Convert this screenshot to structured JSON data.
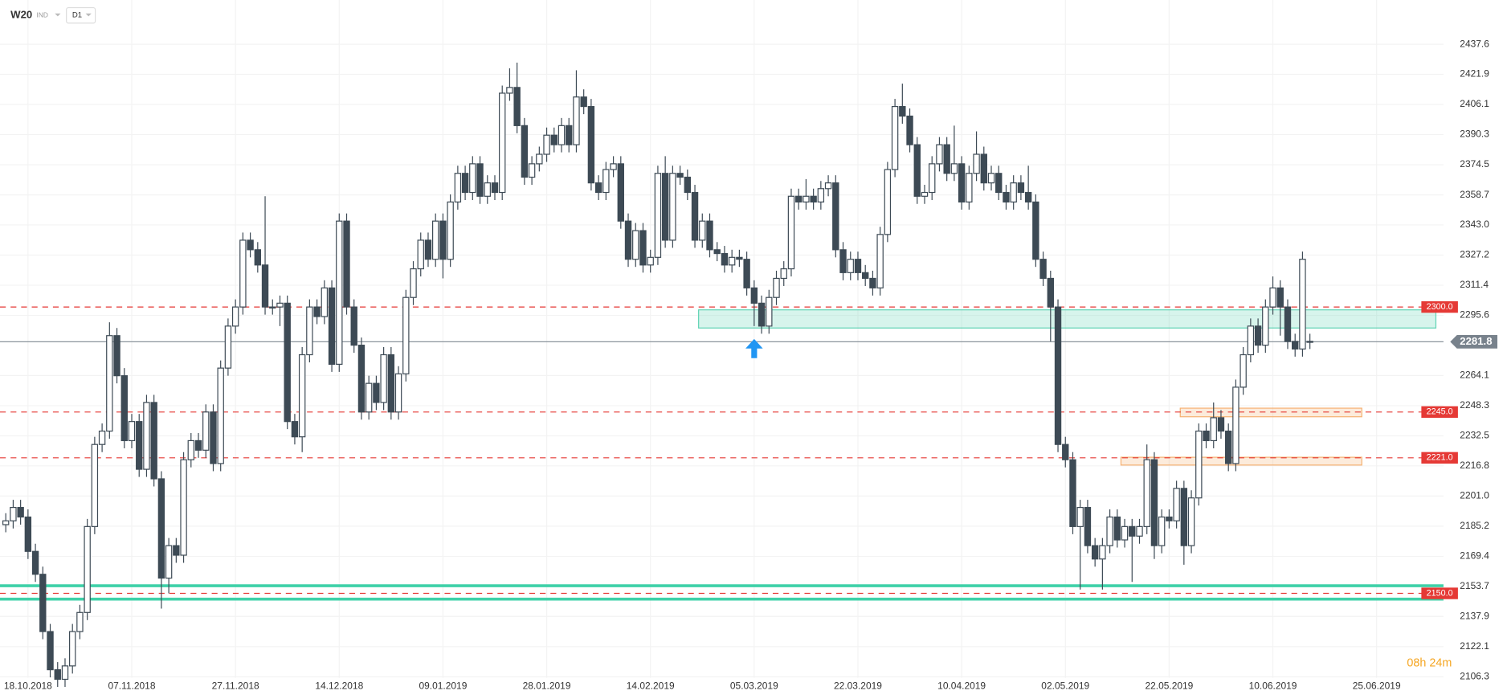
{
  "chart_data": {
    "type": "candlestick",
    "symbol": "W20",
    "market": "IND",
    "interval": "D1",
    "countdown": "08h 24m",
    "ylim": [
      2097.7,
      2460.8
    ],
    "yticks": [
      2437.6,
      2421.9,
      2406.1,
      2390.3,
      2374.5,
      2358.7,
      {
        "value": 2343,
        "label": "2343.0"
      },
      2327.2,
      2311.4,
      2295.6,
      2264.1,
      2248.3,
      2232.5,
      2216.8,
      {
        "value": 2201,
        "label": "2201.0"
      },
      2185.2,
      2169.4,
      2153.7,
      2137.9,
      2122.1,
      2106.3
    ],
    "grid": true,
    "up_color": "#ffffff",
    "down_color": "#3d4a55",
    "wick_color": "#3d4a55",
    "last_price": 2281.8,
    "levels": [
      {
        "value": 2300,
        "label": "2300.0"
      },
      {
        "value": 2245,
        "label": "2245.0"
      },
      {
        "value": 2221,
        "label": "2221.0"
      },
      {
        "value": 2150,
        "label": "2150.0"
      }
    ],
    "level_color": "#e53935",
    "zones": [
      {
        "low": 2289,
        "high": 2298.5,
        "color": "#5fd3b3"
      },
      {
        "low": 2242.5,
        "high": 2247,
        "color": "#f5b070"
      },
      {
        "low": 2217.2,
        "high": 2221.3,
        "color": "#f5b070"
      }
    ],
    "support_lines": {
      "values": [
        2154,
        2147
      ],
      "color": "#3fd1a8"
    },
    "categories": [
      null,
      null,
      null,
      "18.10.2018",
      null,
      null,
      null,
      null,
      null,
      null,
      null,
      null,
      null,
      null,
      null,
      null,
      null,
      "07.11.2018",
      null,
      null,
      null,
      null,
      null,
      null,
      null,
      null,
      null,
      null,
      null,
      null,
      null,
      "27.11.2018",
      null,
      null,
      null,
      null,
      null,
      null,
      null,
      null,
      null,
      null,
      null,
      null,
      null,
      "14.12.2018",
      null,
      null,
      null,
      null,
      null,
      null,
      null,
      null,
      null,
      null,
      null,
      null,
      null,
      "09.01.2019",
      null,
      null,
      null,
      null,
      null,
      null,
      null,
      null,
      null,
      null,
      null,
      null,
      null,
      "28.01.2019",
      null,
      null,
      null,
      null,
      null,
      null,
      null,
      null,
      null,
      null,
      null,
      null,
      null,
      "14.02.2019",
      null,
      null,
      null,
      null,
      null,
      null,
      null,
      null,
      null,
      null,
      null,
      null,
      null,
      "05.03.2019",
      null,
      null,
      null,
      null,
      null,
      null,
      null,
      null,
      null,
      null,
      null,
      null,
      null,
      "22.03.2019",
      null,
      null,
      null,
      null,
      null,
      null,
      null,
      null,
      null,
      null,
      null,
      null,
      null,
      "10.04.2019",
      null,
      null,
      null,
      null,
      null,
      null,
      null,
      null,
      null,
      null,
      null,
      null,
      null,
      "02.05.2019",
      null,
      null,
      null,
      null,
      null,
      null,
      null,
      null,
      null,
      null,
      null,
      null,
      null,
      "22.05.2019",
      null,
      null,
      null,
      null,
      null,
      null,
      null,
      null,
      null,
      null,
      null,
      null,
      null,
      "10.06.2019",
      null,
      null,
      null,
      null,
      null,
      null,
      null,
      null,
      null,
      null,
      null,
      null,
      null,
      "25.06.2019",
      null,
      null,
      null,
      null,
      null,
      null
    ],
    "ohlc": [
      [
        2186,
        2192,
        2182,
        2188
      ],
      [
        2188,
        2199,
        2184,
        2195
      ],
      [
        2195,
        2199,
        2186,
        2190
      ],
      [
        2190,
        2194,
        2168,
        2172
      ],
      [
        2172,
        2176,
        2156,
        2160
      ],
      [
        2160,
        2164,
        2126,
        2130
      ],
      [
        2130,
        2134,
        2106,
        2110
      ],
      [
        2110,
        2114,
        2101,
        2105
      ],
      [
        2105,
        2116,
        2101,
        2112
      ],
      [
        2112,
        2134,
        2108,
        2130
      ],
      [
        2130,
        2144,
        2126,
        2140
      ],
      [
        2140,
        2189,
        2136,
        2185
      ],
      [
        2185,
        2232,
        2181,
        2228
      ],
      [
        2228,
        2239,
        2224,
        2235
      ],
      [
        2235,
        2292,
        2231,
        2285
      ],
      [
        2285,
        2289,
        2260,
        2264
      ],
      [
        2264,
        2268,
        2226,
        2230
      ],
      [
        2230,
        2244,
        2226,
        2240
      ],
      [
        2240,
        2244,
        2211,
        2215
      ],
      [
        2215,
        2254,
        2211,
        2250
      ],
      [
        2250,
        2254,
        2206,
        2210
      ],
      [
        2210,
        2214,
        2142,
        2158
      ],
      [
        2158,
        2179,
        2150,
        2175
      ],
      [
        2175,
        2179,
        2166,
        2170
      ],
      [
        2170,
        2224,
        2166,
        2220
      ],
      [
        2220,
        2234,
        2216,
        2230
      ],
      [
        2230,
        2234,
        2221,
        2225
      ],
      [
        2225,
        2249,
        2221,
        2245
      ],
      [
        2245,
        2249,
        2214,
        2218
      ],
      [
        2218,
        2272,
        2214,
        2268
      ],
      [
        2268,
        2294,
        2264,
        2290
      ],
      [
        2290,
        2304,
        2286,
        2300
      ],
      [
        2300,
        2339,
        2296,
        2335
      ],
      [
        2335,
        2339,
        2326,
        2330
      ],
      [
        2330,
        2334,
        2318,
        2322
      ],
      [
        2322,
        2358,
        2296,
        2300
      ],
      [
        2300,
        2304,
        2296,
        2300
      ],
      [
        2300,
        2306,
        2290,
        2302
      ],
      [
        2302,
        2306,
        2236,
        2240
      ],
      [
        2240,
        2244,
        2228,
        2232
      ],
      [
        2232,
        2279,
        2224,
        2275
      ],
      [
        2275,
        2304,
        2271,
        2300
      ],
      [
        2300,
        2304,
        2291,
        2295
      ],
      [
        2295,
        2314,
        2291,
        2310
      ],
      [
        2310,
        2314,
        2266,
        2270
      ],
      [
        2270,
        2349,
        2266,
        2345
      ],
      [
        2345,
        2349,
        2296,
        2300
      ],
      [
        2300,
        2304,
        2276,
        2280
      ],
      [
        2280,
        2284,
        2241,
        2245
      ],
      [
        2245,
        2264,
        2241,
        2260
      ],
      [
        2260,
        2264,
        2246,
        2250
      ],
      [
        2250,
        2279,
        2246,
        2275
      ],
      [
        2275,
        2279,
        2241,
        2245
      ],
      [
        2245,
        2269,
        2241,
        2265
      ],
      [
        2265,
        2309,
        2261,
        2305
      ],
      [
        2305,
        2324,
        2301,
        2320
      ],
      [
        2320,
        2339,
        2316,
        2335
      ],
      [
        2335,
        2339,
        2321,
        2325
      ],
      [
        2325,
        2349,
        2321,
        2345
      ],
      [
        2345,
        2349,
        2315,
        2325
      ],
      [
        2325,
        2359,
        2321,
        2355
      ],
      [
        2355,
        2374,
        2351,
        2370
      ],
      [
        2370,
        2374,
        2356,
        2360
      ],
      [
        2360,
        2379,
        2356,
        2375
      ],
      [
        2375,
        2379,
        2354,
        2358
      ],
      [
        2358,
        2369,
        2354,
        2365
      ],
      [
        2365,
        2369,
        2356,
        2360
      ],
      [
        2360,
        2416,
        2356,
        2412
      ],
      [
        2412,
        2425,
        2408,
        2415
      ],
      [
        2415,
        2428,
        2391,
        2395
      ],
      [
        2395,
        2399,
        2364,
        2368
      ],
      [
        2368,
        2379,
        2364,
        2375
      ],
      [
        2375,
        2384,
        2371,
        2380
      ],
      [
        2380,
        2394,
        2376,
        2390
      ],
      [
        2390,
        2394,
        2381,
        2385
      ],
      [
        2385,
        2399,
        2381,
        2395
      ],
      [
        2395,
        2399,
        2381,
        2385
      ],
      [
        2385,
        2424,
        2381,
        2410
      ],
      [
        2410,
        2414,
        2401,
        2405
      ],
      [
        2405,
        2409,
        2361,
        2365
      ],
      [
        2365,
        2369,
        2356,
        2360
      ],
      [
        2360,
        2376,
        2356,
        2372
      ],
      [
        2372,
        2379,
        2368,
        2375
      ],
      [
        2375,
        2379,
        2341,
        2345
      ],
      [
        2345,
        2349,
        2321,
        2325
      ],
      [
        2325,
        2344,
        2321,
        2340
      ],
      [
        2340,
        2344,
        2318,
        2322
      ],
      [
        2322,
        2330,
        2318,
        2326
      ],
      [
        2326,
        2374,
        2322,
        2370
      ],
      [
        2370,
        2379,
        2331,
        2335
      ],
      [
        2335,
        2374,
        2331,
        2370
      ],
      [
        2370,
        2374,
        2364,
        2368
      ],
      [
        2368,
        2372,
        2356,
        2360
      ],
      [
        2360,
        2364,
        2331,
        2335
      ],
      [
        2335,
        2349,
        2331,
        2345
      ],
      [
        2345,
        2349,
        2326,
        2330
      ],
      [
        2330,
        2334,
        2324,
        2328
      ],
      [
        2328,
        2332,
        2318,
        2322
      ],
      [
        2322,
        2330,
        2318,
        2326
      ],
      [
        2326,
        2330,
        2321,
        2325
      ],
      [
        2325,
        2329,
        2306,
        2310
      ],
      [
        2310,
        2314,
        2290,
        2302
      ],
      [
        2302,
        2306,
        2286,
        2290
      ],
      [
        2290,
        2309,
        2286,
        2305
      ],
      [
        2305,
        2319,
        2301,
        2315
      ],
      [
        2315,
        2324,
        2311,
        2320
      ],
      [
        2320,
        2362,
        2316,
        2358
      ],
      [
        2358,
        2362,
        2351,
        2355
      ],
      [
        2355,
        2367,
        2351,
        2358
      ],
      [
        2358,
        2362,
        2351,
        2355
      ],
      [
        2355,
        2366,
        2351,
        2362
      ],
      [
        2362,
        2369,
        2358,
        2365
      ],
      [
        2365,
        2369,
        2326,
        2330
      ],
      [
        2330,
        2334,
        2314,
        2318
      ],
      [
        2318,
        2329,
        2314,
        2325
      ],
      [
        2325,
        2329,
        2314,
        2318
      ],
      [
        2318,
        2322,
        2311,
        2315
      ],
      [
        2315,
        2319,
        2306,
        2310
      ],
      [
        2310,
        2342,
        2306,
        2338
      ],
      [
        2338,
        2376,
        2334,
        2372
      ],
      [
        2372,
        2409,
        2368,
        2405
      ],
      [
        2405,
        2417,
        2396,
        2400
      ],
      [
        2400,
        2404,
        2381,
        2385
      ],
      [
        2385,
        2389,
        2354,
        2358
      ],
      [
        2358,
        2364,
        2354,
        2360
      ],
      [
        2360,
        2379,
        2356,
        2375
      ],
      [
        2375,
        2389,
        2371,
        2385
      ],
      [
        2385,
        2389,
        2366,
        2370
      ],
      [
        2370,
        2395,
        2366,
        2375
      ],
      [
        2375,
        2379,
        2351,
        2355
      ],
      [
        2355,
        2374,
        2351,
        2370
      ],
      [
        2370,
        2392,
        2366,
        2380
      ],
      [
        2380,
        2384,
        2361,
        2365
      ],
      [
        2365,
        2374,
        2361,
        2370
      ],
      [
        2370,
        2374,
        2356,
        2360
      ],
      [
        2360,
        2364,
        2351,
        2355
      ],
      [
        2355,
        2369,
        2351,
        2365
      ],
      [
        2365,
        2369,
        2356,
        2360
      ],
      [
        2360,
        2374,
        2351,
        2355
      ],
      [
        2355,
        2359,
        2321,
        2325
      ],
      [
        2325,
        2329,
        2311,
        2315
      ],
      [
        2315,
        2319,
        2282,
        2300
      ],
      [
        2300,
        2304,
        2224,
        2228
      ],
      [
        2228,
        2232,
        2216,
        2220
      ],
      [
        2220,
        2224,
        2181,
        2185
      ],
      [
        2185,
        2199,
        2152,
        2195
      ],
      [
        2195,
        2199,
        2171,
        2175
      ],
      [
        2175,
        2179,
        2164,
        2168
      ],
      [
        2168,
        2179,
        2152,
        2175
      ],
      [
        2175,
        2194,
        2171,
        2190
      ],
      [
        2190,
        2194,
        2174,
        2178
      ],
      [
        2178,
        2189,
        2174,
        2185
      ],
      [
        2185,
        2189,
        2156,
        2180
      ],
      [
        2180,
        2189,
        2176,
        2185
      ],
      [
        2185,
        2228,
        2181,
        2220
      ],
      [
        2220,
        2224,
        2168,
        2175
      ],
      [
        2175,
        2194,
        2171,
        2190
      ],
      [
        2190,
        2194,
        2184,
        2188
      ],
      [
        2188,
        2209,
        2184,
        2205
      ],
      [
        2205,
        2209,
        2165,
        2175
      ],
      [
        2175,
        2204,
        2171,
        2200
      ],
      [
        2200,
        2239,
        2196,
        2235
      ],
      [
        2235,
        2239,
        2226,
        2230
      ],
      [
        2230,
        2250,
        2226,
        2242
      ],
      [
        2242,
        2246,
        2231,
        2235
      ],
      [
        2235,
        2239,
        2214,
        2218
      ],
      [
        2218,
        2262,
        2214,
        2258
      ],
      [
        2258,
        2279,
        2254,
        2275
      ],
      [
        2275,
        2294,
        2271,
        2290
      ],
      [
        2290,
        2294,
        2276,
        2280
      ],
      [
        2280,
        2304,
        2276,
        2300
      ],
      [
        2300,
        2316,
        2296,
        2310
      ],
      [
        2310,
        2314,
        2285,
        2300
      ],
      [
        2300,
        2304,
        2278,
        2282
      ],
      [
        2282,
        2286,
        2274,
        2278
      ],
      [
        2278,
        2329,
        2274,
        2325
      ],
      [
        2282,
        2286,
        2278,
        2281.8
      ],
      null,
      null,
      null,
      null,
      null,
      null,
      null,
      null,
      null,
      null,
      null,
      null,
      null,
      null,
      null
    ]
  }
}
